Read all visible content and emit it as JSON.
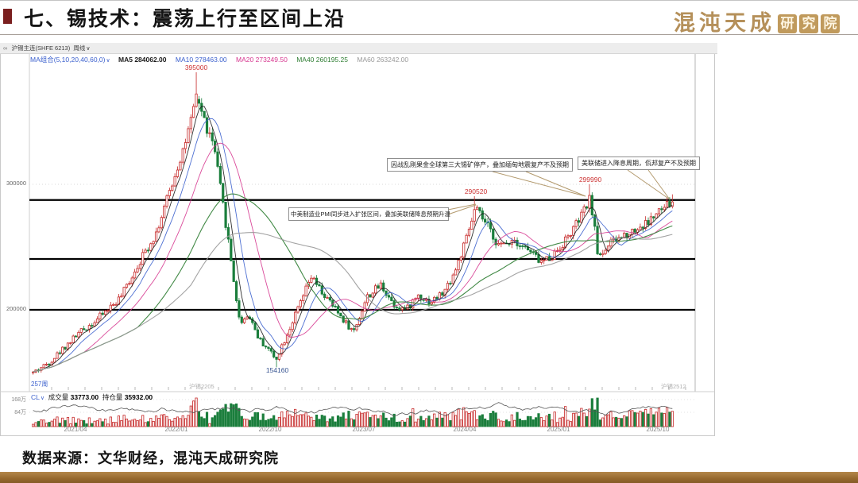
{
  "slide": {
    "title": "七、锡技术：震荡上行至区间上沿",
    "logo_main": "混沌天成",
    "logo_badge_chars": [
      "研",
      "究",
      "院"
    ],
    "source": "数据来源：文华财经，混沌天成研究院",
    "accent_color": "#7a1f1f",
    "gold_color": "#b5905a"
  },
  "window": {
    "icon": "∞",
    "title": "沪锡主连(SHFE 6213)",
    "period": "周线",
    "caret": "∨",
    "legend_combo": "MA组合(5,10,20,40,60,0)",
    "legend": [
      {
        "label": "MA5",
        "value": "284062.00",
        "color": "#1a1a1a"
      },
      {
        "label": "MA10",
        "value": "278463.00",
        "color": "#3a5fcd"
      },
      {
        "label": "MA20",
        "value": "273249.50",
        "color": "#d6368f"
      },
      {
        "label": "MA40",
        "value": "260195.25",
        "color": "#2e7d32"
      },
      {
        "label": "MA60",
        "value": "263242.00",
        "color": "#999999"
      }
    ],
    "y_axis": [
      "300000",
      "200000"
    ],
    "vol_axis": [
      "168万",
      "84万"
    ],
    "weeks_label": "257周",
    "contract_left": "沪锡2205",
    "contract_right": "沪锡2512",
    "vol_indicator": "CL",
    "vol_label": "成交量",
    "vol_value": "33773.00",
    "oi_label": "持仓量",
    "oi_value": "35932.00",
    "x_axis": [
      "2021/04",
      "2022/01",
      "2022/10",
      "2023/07",
      "2024/04",
      "2025/01",
      "2025/10"
    ],
    "annotations": [
      {
        "text": "因战乱刚果金全球第三大锡矿停产，叠加缅甸地震复产不及预期"
      },
      {
        "text": "美联储进入降息周期，佤邦复产不及预期"
      },
      {
        "text": "中美制造业PMI同步进入扩张区间，叠加美联储降息预期升温"
      }
    ],
    "price_labels": [
      {
        "text": "395000",
        "color": "#cc3333"
      },
      {
        "text": "290520",
        "color": "#cc3333"
      },
      {
        "text": "299990",
        "color": "#cc3333"
      },
      {
        "text": "154160",
        "color": "#33518f"
      }
    ]
  },
  "chart_data": {
    "type": "candlestick",
    "title": "沪锡主连 周线 (SHFE tin main continuous, weekly)",
    "visible_weeks": 257,
    "y_axis_ticks": [
      300000,
      200000
    ],
    "x_axis_labels": [
      "2021/04",
      "2022/01",
      "2022/10",
      "2023/07",
      "2024/04",
      "2025/01",
      "2025/10"
    ],
    "key_levels": {
      "upper": 287500,
      "middle": 240500,
      "lower": 200000
    },
    "key_points": {
      "all_time_high": 395000,
      "low_2022": 154160,
      "high_2024": 290520,
      "high_2025": 299990,
      "last_close": 286000
    },
    "ma_settings": [
      5,
      10,
      20,
      40,
      60
    ],
    "ma_latest": {
      "MA5": 284062.0,
      "MA10": 278463.0,
      "MA20": 273249.5,
      "MA40": 260195.25,
      "MA60": 263242.0
    },
    "volume_latest": 33773.0,
    "open_interest_latest": 35932.0,
    "price_path_anchors": [
      [
        0.0,
        150000
      ],
      [
        0.025,
        158000
      ],
      [
        0.068,
        180000
      ],
      [
        0.099,
        192000
      ],
      [
        0.137,
        210000
      ],
      [
        0.168,
        240000
      ],
      [
        0.193,
        262000
      ],
      [
        0.217,
        300000
      ],
      [
        0.242,
        340000
      ],
      [
        0.257,
        370000
      ],
      [
        0.271,
        345000
      ],
      [
        0.283,
        330000
      ],
      [
        0.304,
        260000
      ],
      [
        0.323,
        190000
      ],
      [
        0.338,
        196000
      ],
      [
        0.354,
        176000
      ],
      [
        0.37,
        168000
      ],
      [
        0.379,
        160000
      ],
      [
        0.395,
        178000
      ],
      [
        0.412,
        198000
      ],
      [
        0.435,
        226000
      ],
      [
        0.453,
        213000
      ],
      [
        0.475,
        199000
      ],
      [
        0.501,
        182000
      ],
      [
        0.522,
        210000
      ],
      [
        0.544,
        220000
      ],
      [
        0.565,
        204000
      ],
      [
        0.584,
        200000
      ],
      [
        0.602,
        212000
      ],
      [
        0.621,
        206000
      ],
      [
        0.643,
        214000
      ],
      [
        0.661,
        232000
      ],
      [
        0.677,
        255000
      ],
      [
        0.692,
        281000
      ],
      [
        0.711,
        266000
      ],
      [
        0.73,
        250000
      ],
      [
        0.751,
        257000
      ],
      [
        0.773,
        248000
      ],
      [
        0.795,
        238000
      ],
      [
        0.814,
        244000
      ],
      [
        0.835,
        257000
      ],
      [
        0.855,
        272000
      ],
      [
        0.872,
        289000
      ],
      [
        0.884,
        242000
      ],
      [
        0.901,
        252000
      ],
      [
        0.919,
        258000
      ],
      [
        0.938,
        263000
      ],
      [
        0.957,
        268000
      ],
      [
        0.975,
        276000
      ],
      [
        0.991,
        283000
      ],
      [
        1.0,
        286000
      ]
    ]
  }
}
